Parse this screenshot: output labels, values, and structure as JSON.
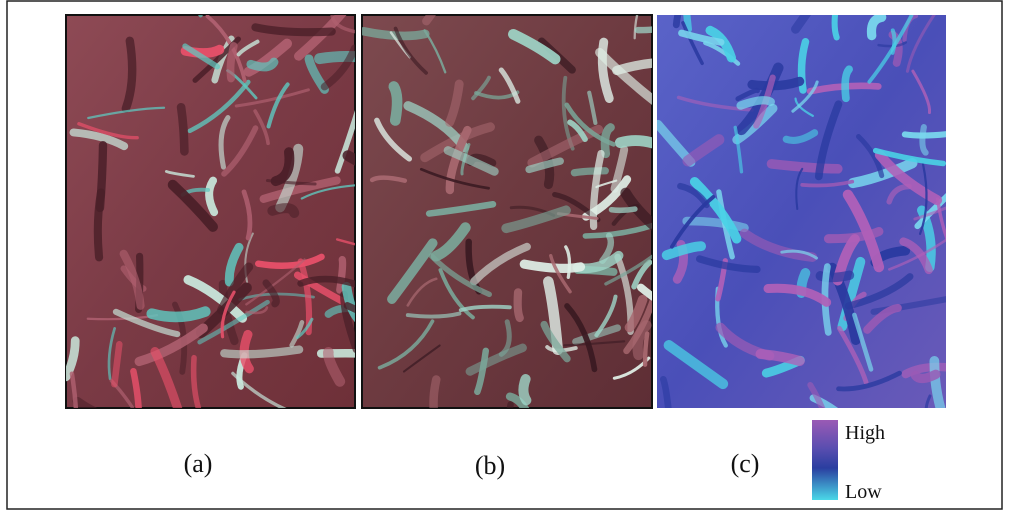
{
  "figure": {
    "panels": [
      {
        "label": "(a)"
      },
      {
        "label": "(b)"
      },
      {
        "label": "(c)"
      }
    ],
    "legend": {
      "high": "High",
      "low": "Low"
    }
  }
}
